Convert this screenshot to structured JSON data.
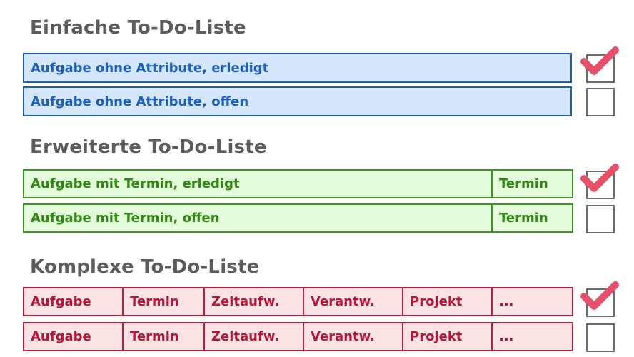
{
  "sections": [
    {
      "heading": "Einfache To-Do-Liste",
      "rows": [
        {
          "cells": [
            "Aufgabe ohne Attribute, erledigt"
          ],
          "checked": true
        },
        {
          "cells": [
            "Aufgabe ohne Attribute, offen"
          ],
          "checked": false
        }
      ]
    },
    {
      "heading": "Erweiterte To-Do-Liste",
      "rows": [
        {
          "cells": [
            "Aufgabe mit Termin, erledigt",
            "Termin"
          ],
          "checked": true
        },
        {
          "cells": [
            "Aufgabe mit Termin, offen",
            "Termin"
          ],
          "checked": false
        }
      ]
    },
    {
      "heading": "Komplexe To-Do-Liste",
      "rows": [
        {
          "cells": [
            "Aufgabe",
            "Termin",
            "Zeitaufw.",
            "Verantw.",
            "Projekt",
            "..."
          ],
          "checked": true
        },
        {
          "cells": [
            "Aufgabe",
            "Termin",
            "Zeitaufw.",
            "Verantw.",
            "Projekt",
            "..."
          ],
          "checked": false
        }
      ]
    }
  ],
  "colors": {
    "simple_fill": "#d6e6fb",
    "simple_border": "#1f5fae",
    "simple_text": "#1a5fc1",
    "extended_fill": "#e4fbdc",
    "extended_border": "#3c9424",
    "extended_text": "#2f8a12",
    "complex_fill": "#fbe3e5",
    "complex_border": "#b41e3f",
    "complex_text": "#b5173a",
    "checkmark": "#e8506a",
    "heading_text": "#5c5c5c"
  }
}
